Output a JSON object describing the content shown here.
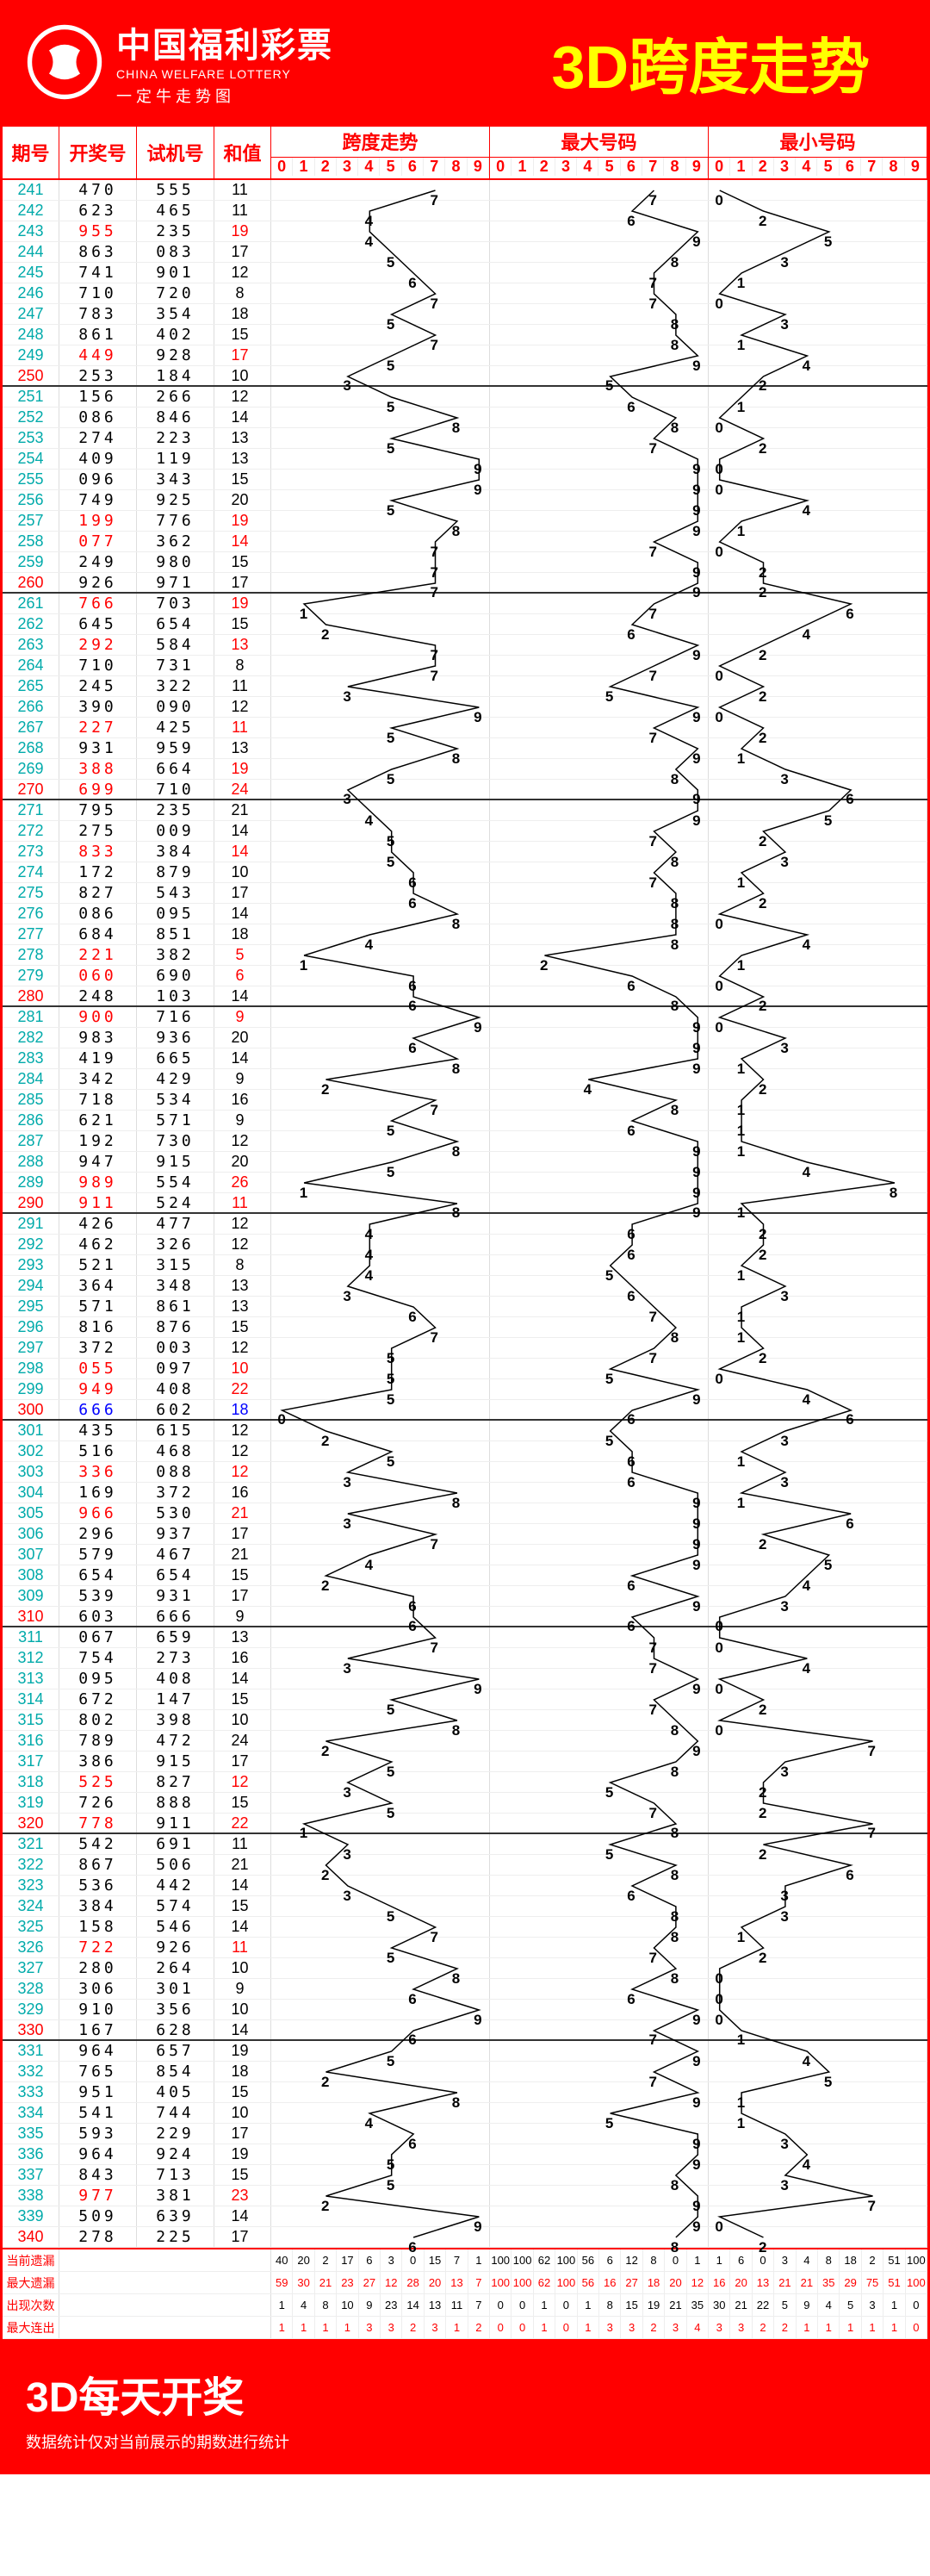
{
  "header": {
    "cn": "中国福利彩票",
    "en": "CHINA WELFARE LOTTERY",
    "sub": "一 定 牛 走 势 图",
    "title": "3D跨度走势"
  },
  "columns": {
    "period": "期号",
    "draw": "开奖号",
    "test": "试机号",
    "sum": "和值",
    "trend1": "跨度走势",
    "trend2": "最大号码",
    "trend3": "最小号码"
  },
  "digits": [
    "0",
    "1",
    "2",
    "3",
    "4",
    "5",
    "6",
    "7",
    "8",
    "9"
  ],
  "stats_labels": [
    "当前遗漏",
    "最大遗漏",
    "出现次数",
    "最大连出"
  ],
  "stats": {
    "s1": [
      [
        "40",
        "20",
        "2",
        "17",
        "6",
        "3",
        "0",
        "15",
        "7",
        "1"
      ],
      [
        "59",
        "30",
        "21",
        "23",
        "27",
        "12",
        "28",
        "20",
        "13",
        "7"
      ],
      [
        "1",
        "4",
        "8",
        "10",
        "9",
        "23",
        "14",
        "13",
        "11",
        "7"
      ],
      [
        "1",
        "1",
        "1",
        "1",
        "3",
        "3",
        "2",
        "3",
        "1",
        "2"
      ]
    ],
    "s2": [
      [
        "100",
        "100",
        "62",
        "100",
        "56",
        "6",
        "12",
        "8",
        "0",
        "1"
      ],
      [
        "100",
        "100",
        "62",
        "100",
        "56",
        "16",
        "27",
        "18",
        "20",
        "12"
      ],
      [
        "0",
        "0",
        "1",
        "0",
        "1",
        "8",
        "15",
        "19",
        "21",
        "35"
      ],
      [
        "0",
        "0",
        "1",
        "0",
        "1",
        "3",
        "3",
        "2",
        "3",
        "4"
      ]
    ],
    "s3": [
      [
        "1",
        "6",
        "0",
        "3",
        "4",
        "8",
        "18",
        "2",
        "51",
        "100"
      ],
      [
        "16",
        "20",
        "13",
        "21",
        "21",
        "35",
        "29",
        "75",
        "51",
        "100"
      ],
      [
        "30",
        "21",
        "22",
        "5",
        "9",
        "4",
        "5",
        "3",
        "1",
        "0"
      ],
      [
        "3",
        "3",
        "2",
        "2",
        "1",
        "1",
        "1",
        "1",
        "1",
        "0"
      ]
    ]
  },
  "footer": {
    "title": "3D每天开奖",
    "sub": "数据统计仅对当前展示的期数进行统计"
  },
  "line_color": "#000",
  "rows": [
    {
      "p": "241",
      "d": "470",
      "t": "555",
      "s": "11",
      "sp": 7,
      "mx": 7,
      "mn": 0
    },
    {
      "p": "242",
      "d": "623",
      "t": "465",
      "s": "11",
      "sp": 4,
      "mx": 6,
      "mn": 2
    },
    {
      "p": "243",
      "d": "955",
      "t": "235",
      "s": "19",
      "dr": 1,
      "sr": 1,
      "sp": 4,
      "mx": 9,
      "mn": 5
    },
    {
      "p": "244",
      "d": "863",
      "t": "083",
      "s": "17",
      "sp": 5,
      "mx": 8,
      "mn": 3
    },
    {
      "p": "245",
      "d": "741",
      "t": "901",
      "s": "12",
      "sp": 6,
      "mx": 7,
      "mn": 1
    },
    {
      "p": "246",
      "d": "710",
      "t": "720",
      "s": "8",
      "sp": 7,
      "mx": 7,
      "mn": 0
    },
    {
      "p": "247",
      "d": "783",
      "t": "354",
      "s": "18",
      "sp": 5,
      "mx": 8,
      "mn": 3
    },
    {
      "p": "248",
      "d": "861",
      "t": "402",
      "s": "15",
      "sp": 7,
      "mx": 8,
      "mn": 1
    },
    {
      "p": "249",
      "d": "449",
      "t": "928",
      "s": "17",
      "dr": 1,
      "sr": 1,
      "sp": 5,
      "mx": 9,
      "mn": 4
    },
    {
      "p": "250",
      "d": "253",
      "t": "184",
      "s": "10",
      "pr": 1,
      "sp": 3,
      "mx": 5,
      "mn": 2,
      "div": 1
    },
    {
      "p": "251",
      "d": "156",
      "t": "266",
      "s": "12",
      "sp": 5,
      "mx": 6,
      "mn": 1
    },
    {
      "p": "252",
      "d": "086",
      "t": "846",
      "s": "14",
      "sp": 8,
      "mx": 8,
      "mn": 0
    },
    {
      "p": "253",
      "d": "274",
      "t": "223",
      "s": "13",
      "sp": 5,
      "mx": 7,
      "mn": 2
    },
    {
      "p": "254",
      "d": "409",
      "t": "119",
      "s": "13",
      "sp": 9,
      "mx": 9,
      "mn": 0
    },
    {
      "p": "255",
      "d": "096",
      "t": "343",
      "s": "15",
      "sp": 9,
      "mx": 9,
      "mn": 0
    },
    {
      "p": "256",
      "d": "749",
      "t": "925",
      "s": "20",
      "sp": 5,
      "mx": 9,
      "mn": 4
    },
    {
      "p": "257",
      "d": "199",
      "t": "776",
      "s": "19",
      "dr": 1,
      "sr": 1,
      "sp": 8,
      "mx": 9,
      "mn": 1
    },
    {
      "p": "258",
      "d": "077",
      "t": "362",
      "s": "14",
      "dr": 1,
      "sr": 1,
      "sp": 7,
      "mx": 7,
      "mn": 0
    },
    {
      "p": "259",
      "d": "249",
      "t": "980",
      "s": "15",
      "sp": 7,
      "mx": 9,
      "mn": 2
    },
    {
      "p": "260",
      "d": "926",
      "t": "971",
      "s": "17",
      "pr": 1,
      "sp": 7,
      "mx": 9,
      "mn": 2,
      "div": 1
    },
    {
      "p": "261",
      "d": "766",
      "t": "703",
      "s": "19",
      "dr": 1,
      "sr": 1,
      "sp": 1,
      "mx": 7,
      "mn": 6
    },
    {
      "p": "262",
      "d": "645",
      "t": "654",
      "s": "15",
      "sp": 2,
      "mx": 6,
      "mn": 4
    },
    {
      "p": "263",
      "d": "292",
      "t": "584",
      "s": "13",
      "dr": 1,
      "sr": 1,
      "sp": 7,
      "mx": 9,
      "mn": 2
    },
    {
      "p": "264",
      "d": "710",
      "t": "731",
      "s": "8",
      "sp": 7,
      "mx": 7,
      "mn": 0
    },
    {
      "p": "265",
      "d": "245",
      "t": "322",
      "s": "11",
      "sp": 3,
      "mx": 5,
      "mn": 2
    },
    {
      "p": "266",
      "d": "390",
      "t": "090",
      "s": "12",
      "sp": 9,
      "mx": 9,
      "mn": 0
    },
    {
      "p": "267",
      "d": "227",
      "t": "425",
      "s": "11",
      "dr": 1,
      "sr": 1,
      "sp": 5,
      "mx": 7,
      "mn": 2
    },
    {
      "p": "268",
      "d": "931",
      "t": "959",
      "s": "13",
      "sp": 8,
      "mx": 9,
      "mn": 1
    },
    {
      "p": "269",
      "d": "388",
      "t": "664",
      "s": "19",
      "dr": 1,
      "sr": 1,
      "sp": 5,
      "mx": 8,
      "mn": 3
    },
    {
      "p": "270",
      "d": "699",
      "t": "710",
      "s": "24",
      "dr": 1,
      "sr": 1,
      "pr": 1,
      "sp": 3,
      "mx": 9,
      "mn": 6,
      "div": 1
    },
    {
      "p": "271",
      "d": "795",
      "t": "235",
      "s": "21",
      "sp": 4,
      "mx": 9,
      "mn": 5
    },
    {
      "p": "272",
      "d": "275",
      "t": "009",
      "s": "14",
      "sp": 5,
      "mx": 7,
      "mn": 2
    },
    {
      "p": "273",
      "d": "833",
      "t": "384",
      "s": "14",
      "dr": 1,
      "sr": 1,
      "sp": 5,
      "mx": 8,
      "mn": 3
    },
    {
      "p": "274",
      "d": "172",
      "t": "879",
      "s": "10",
      "sp": 6,
      "mx": 7,
      "mn": 1
    },
    {
      "p": "275",
      "d": "827",
      "t": "543",
      "s": "17",
      "sp": 6,
      "mx": 8,
      "mn": 2
    },
    {
      "p": "276",
      "d": "086",
      "t": "095",
      "s": "14",
      "sp": 8,
      "mx": 8,
      "mn": 0
    },
    {
      "p": "277",
      "d": "684",
      "t": "851",
      "s": "18",
      "sp": 4,
      "mx": 8,
      "mn": 4
    },
    {
      "p": "278",
      "d": "221",
      "t": "382",
      "s": "5",
      "dr": 1,
      "sr": 1,
      "sp": 1,
      "mx": 2,
      "mn": 1
    },
    {
      "p": "279",
      "d": "060",
      "t": "690",
      "s": "6",
      "dr": 1,
      "sr": 1,
      "sp": 6,
      "mx": 6,
      "mn": 0
    },
    {
      "p": "280",
      "d": "248",
      "t": "103",
      "s": "14",
      "pr": 1,
      "sp": 6,
      "mx": 8,
      "mn": 2,
      "div": 1
    },
    {
      "p": "281",
      "d": "900",
      "t": "716",
      "s": "9",
      "dr": 1,
      "sr": 1,
      "sp": 9,
      "mx": 9,
      "mn": 0
    },
    {
      "p": "282",
      "d": "983",
      "t": "936",
      "s": "20",
      "sp": 6,
      "mx": 9,
      "mn": 3
    },
    {
      "p": "283",
      "d": "419",
      "t": "665",
      "s": "14",
      "sp": 8,
      "mx": 9,
      "mn": 1
    },
    {
      "p": "284",
      "d": "342",
      "t": "429",
      "s": "9",
      "sp": 2,
      "mx": 4,
      "mn": 2
    },
    {
      "p": "285",
      "d": "718",
      "t": "534",
      "s": "16",
      "sp": 7,
      "mx": 8,
      "mn": 1
    },
    {
      "p": "286",
      "d": "621",
      "t": "571",
      "s": "9",
      "sp": 5,
      "mx": 6,
      "mn": 1
    },
    {
      "p": "287",
      "d": "192",
      "t": "730",
      "s": "12",
      "sp": 8,
      "mx": 9,
      "mn": 1
    },
    {
      "p": "288",
      "d": "947",
      "t": "915",
      "s": "20",
      "sp": 5,
      "mx": 9,
      "mn": 4
    },
    {
      "p": "289",
      "d": "989",
      "t": "554",
      "s": "26",
      "dr": 1,
      "sr": 1,
      "sp": 1,
      "mx": 9,
      "mn": 8
    },
    {
      "p": "290",
      "d": "911",
      "t": "524",
      "s": "11",
      "dr": 1,
      "sr": 1,
      "pr": 1,
      "sp": 8,
      "mx": 9,
      "mn": 1,
      "div": 1
    },
    {
      "p": "291",
      "d": "426",
      "t": "477",
      "s": "12",
      "sp": 4,
      "mx": 6,
      "mn": 2
    },
    {
      "p": "292",
      "d": "462",
      "t": "326",
      "s": "12",
      "sp": 4,
      "mx": 6,
      "mn": 2
    },
    {
      "p": "293",
      "d": "521",
      "t": "315",
      "s": "8",
      "sp": 4,
      "mx": 5,
      "mn": 1
    },
    {
      "p": "294",
      "d": "364",
      "t": "348",
      "s": "13",
      "sp": 3,
      "mx": 6,
      "mn": 3
    },
    {
      "p": "295",
      "d": "571",
      "t": "861",
      "s": "13",
      "sp": 6,
      "mx": 7,
      "mn": 1
    },
    {
      "p": "296",
      "d": "816",
      "t": "876",
      "s": "15",
      "sp": 7,
      "mx": 8,
      "mn": 1
    },
    {
      "p": "297",
      "d": "372",
      "t": "003",
      "s": "12",
      "sp": 5,
      "mx": 7,
      "mn": 2
    },
    {
      "p": "298",
      "d": "055",
      "t": "097",
      "s": "10",
      "dr": 1,
      "sr": 1,
      "sp": 5,
      "mx": 5,
      "mn": 0
    },
    {
      "p": "299",
      "d": "949",
      "t": "408",
      "s": "22",
      "dr": 1,
      "sr": 1,
      "sp": 5,
      "mx": 9,
      "mn": 4
    },
    {
      "p": "300",
      "d": "666",
      "t": "602",
      "s": "18",
      "db": 1,
      "sb": 1,
      "pr": 1,
      "sp": 0,
      "mx": 6,
      "mn": 6,
      "div": 1
    },
    {
      "p": "301",
      "d": "435",
      "t": "615",
      "s": "12",
      "sp": 2,
      "mx": 5,
      "mn": 3
    },
    {
      "p": "302",
      "d": "516",
      "t": "468",
      "s": "12",
      "sp": 5,
      "mx": 6,
      "mn": 1
    },
    {
      "p": "303",
      "d": "336",
      "t": "088",
      "s": "12",
      "dr": 1,
      "sr": 1,
      "sp": 3,
      "mx": 6,
      "mn": 3
    },
    {
      "p": "304",
      "d": "169",
      "t": "372",
      "s": "16",
      "sp": 8,
      "mx": 9,
      "mn": 1
    },
    {
      "p": "305",
      "d": "966",
      "t": "530",
      "s": "21",
      "dr": 1,
      "sr": 1,
      "sp": 3,
      "mx": 9,
      "mn": 6
    },
    {
      "p": "306",
      "d": "296",
      "t": "937",
      "s": "17",
      "sp": 7,
      "mx": 9,
      "mn": 2
    },
    {
      "p": "307",
      "d": "579",
      "t": "467",
      "s": "21",
      "sp": 4,
      "mx": 9,
      "mn": 5
    },
    {
      "p": "308",
      "d": "654",
      "t": "654",
      "s": "15",
      "sp": 2,
      "mx": 6,
      "mn": 4
    },
    {
      "p": "309",
      "d": "539",
      "t": "931",
      "s": "17",
      "sp": 6,
      "mx": 9,
      "mn": 3
    },
    {
      "p": "310",
      "d": "603",
      "t": "666",
      "s": "9",
      "pr": 1,
      "sp": 6,
      "mx": 6,
      "mn": 0,
      "div": 1
    },
    {
      "p": "311",
      "d": "067",
      "t": "659",
      "s": "13",
      "sp": 7,
      "mx": 7,
      "mn": 0
    },
    {
      "p": "312",
      "d": "754",
      "t": "273",
      "s": "16",
      "sp": 3,
      "mx": 7,
      "mn": 4
    },
    {
      "p": "313",
      "d": "095",
      "t": "408",
      "s": "14",
      "sp": 9,
      "mx": 9,
      "mn": 0
    },
    {
      "p": "314",
      "d": "672",
      "t": "147",
      "s": "15",
      "sp": 5,
      "mx": 7,
      "mn": 2
    },
    {
      "p": "315",
      "d": "802",
      "t": "398",
      "s": "10",
      "sp": 8,
      "mx": 8,
      "mn": 0
    },
    {
      "p": "316",
      "d": "789",
      "t": "472",
      "s": "24",
      "sp": 2,
      "mx": 9,
      "mn": 7
    },
    {
      "p": "317",
      "d": "386",
      "t": "915",
      "s": "17",
      "sp": 5,
      "mx": 8,
      "mn": 3
    },
    {
      "p": "318",
      "d": "525",
      "t": "827",
      "s": "12",
      "dr": 1,
      "sr": 1,
      "sp": 3,
      "mx": 5,
      "mn": 2
    },
    {
      "p": "319",
      "d": "726",
      "t": "888",
      "s": "15",
      "sp": 5,
      "mx": 7,
      "mn": 2
    },
    {
      "p": "320",
      "d": "778",
      "t": "911",
      "s": "22",
      "dr": 1,
      "sr": 1,
      "pr": 1,
      "sp": 1,
      "mx": 8,
      "mn": 7,
      "div": 1
    },
    {
      "p": "321",
      "d": "542",
      "t": "691",
      "s": "11",
      "sp": 3,
      "mx": 5,
      "mn": 2
    },
    {
      "p": "322",
      "d": "867",
      "t": "506",
      "s": "21",
      "sp": 2,
      "mx": 8,
      "mn": 6
    },
    {
      "p": "323",
      "d": "536",
      "t": "442",
      "s": "14",
      "sp": 3,
      "mx": 6,
      "mn": 3
    },
    {
      "p": "324",
      "d": "384",
      "t": "574",
      "s": "15",
      "sp": 5,
      "mx": 8,
      "mn": 3
    },
    {
      "p": "325",
      "d": "158",
      "t": "546",
      "s": "14",
      "sp": 7,
      "mx": 8,
      "mn": 1
    },
    {
      "p": "326",
      "d": "722",
      "t": "926",
      "s": "11",
      "dr": 1,
      "sr": 1,
      "sp": 5,
      "mx": 7,
      "mn": 2
    },
    {
      "p": "327",
      "d": "280",
      "t": "264",
      "s": "10",
      "sp": 8,
      "mx": 8,
      "mn": 0
    },
    {
      "p": "328",
      "d": "306",
      "t": "301",
      "s": "9",
      "sp": 6,
      "mx": 6,
      "mn": 0
    },
    {
      "p": "329",
      "d": "910",
      "t": "356",
      "s": "10",
      "sp": 9,
      "mx": 9,
      "mn": 0
    },
    {
      "p": "330",
      "d": "167",
      "t": "628",
      "s": "14",
      "pr": 1,
      "sp": 6,
      "mx": 7,
      "mn": 1,
      "div": 1
    },
    {
      "p": "331",
      "d": "964",
      "t": "657",
      "s": "19",
      "sp": 5,
      "mx": 9,
      "mn": 4
    },
    {
      "p": "332",
      "d": "765",
      "t": "854",
      "s": "18",
      "sp": 2,
      "mx": 7,
      "mn": 5
    },
    {
      "p": "333",
      "d": "951",
      "t": "405",
      "s": "15",
      "sp": 8,
      "mx": 9,
      "mn": 1
    },
    {
      "p": "334",
      "d": "541",
      "t": "744",
      "s": "10",
      "sp": 4,
      "mx": 5,
      "mn": 1
    },
    {
      "p": "335",
      "d": "593",
      "t": "229",
      "s": "17",
      "sp": 6,
      "mx": 9,
      "mn": 3
    },
    {
      "p": "336",
      "d": "964",
      "t": "924",
      "s": "19",
      "sp": 5,
      "mx": 9,
      "mn": 4
    },
    {
      "p": "337",
      "d": "843",
      "t": "713",
      "s": "15",
      "sp": 5,
      "mx": 8,
      "mn": 3
    },
    {
      "p": "338",
      "d": "977",
      "t": "381",
      "s": "23",
      "dr": 1,
      "sr": 1,
      "sp": 2,
      "mx": 9,
      "mn": 7
    },
    {
      "p": "339",
      "d": "509",
      "t": "639",
      "s": "14",
      "sp": 9,
      "mx": 9,
      "mn": 0
    },
    {
      "p": "340",
      "d": "278",
      "t": "225",
      "s": "17",
      "pr": 1,
      "sp": 6,
      "mx": 8,
      "mn": 2
    }
  ]
}
